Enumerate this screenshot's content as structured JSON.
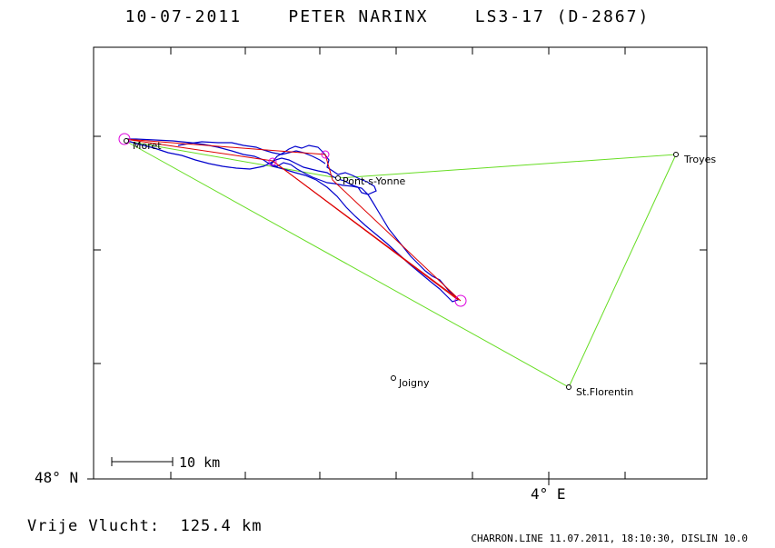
{
  "header": {
    "title": "10-07-2011    PETER NARINX    LS3-17 (D-2867)"
  },
  "axes": {
    "lat_label": "48° N",
    "lon_label": "4° E"
  },
  "scale": {
    "label": "10 km"
  },
  "places": [
    {
      "name": "Moret"
    },
    {
      "name": "Pont-s-Yonne"
    },
    {
      "name": "Troyes"
    },
    {
      "name": "Joigny"
    },
    {
      "name": "St.Florentin"
    }
  ],
  "summary": {
    "distance_label": "Vrije Vlucht:",
    "distance_value": "125.4 km"
  },
  "footer": {
    "text": "CHARRON.LINE 11.07.2011, 18:10:30, DISLIN 10.0"
  },
  "colors": {
    "frame": "#000000",
    "task_line": "#66dd22",
    "flight_trace": "#0000cc",
    "optimized_route": "#dd0000",
    "turnpoint_marker": "#dd00dd"
  }
}
